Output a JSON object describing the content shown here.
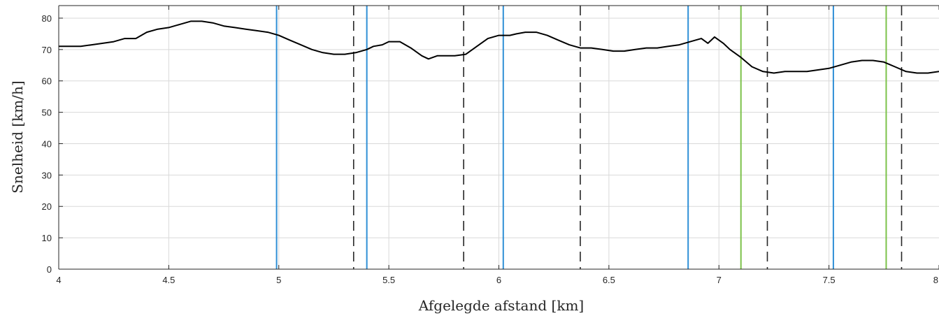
{
  "chart_data": {
    "type": "line",
    "xlabel": "Afgelegde afstand [km]",
    "ylabel": "Snelheid [km/h]",
    "xlim": [
      4,
      8
    ],
    "ylim": [
      0,
      84
    ],
    "xticks": [
      4,
      4.5,
      5,
      5.5,
      6,
      6.5,
      7,
      7.5,
      8
    ],
    "xtick_labels": [
      "4",
      "4.5",
      "5",
      "5.5",
      "6",
      "6.5",
      "7",
      "7.5",
      "8"
    ],
    "yticks": [
      0,
      10,
      20,
      30,
      40,
      50,
      60,
      70,
      80
    ],
    "ytick_labels": [
      "0",
      "10",
      "20",
      "30",
      "40",
      "50",
      "60",
      "70",
      "80"
    ],
    "grid": true,
    "series": [
      {
        "color": "#000000",
        "x": [
          4.0,
          4.05,
          4.1,
          4.15,
          4.2,
          4.25,
          4.3,
          4.35,
          4.4,
          4.45,
          4.5,
          4.55,
          4.6,
          4.65,
          4.7,
          4.75,
          4.8,
          4.85,
          4.9,
          4.95,
          5.0,
          5.05,
          5.1,
          5.15,
          5.2,
          5.25,
          5.3,
          5.35,
          5.4,
          5.43,
          5.47,
          5.5,
          5.55,
          5.6,
          5.65,
          5.68,
          5.72,
          5.75,
          5.8,
          5.85,
          5.9,
          5.95,
          6.0,
          6.05,
          6.08,
          6.12,
          6.17,
          6.22,
          6.27,
          6.32,
          6.37,
          6.42,
          6.47,
          6.52,
          6.57,
          6.62,
          6.67,
          6.72,
          6.77,
          6.82,
          6.87,
          6.92,
          6.95,
          6.98,
          7.02,
          7.05,
          7.1,
          7.15,
          7.2,
          7.25,
          7.3,
          7.35,
          7.4,
          7.45,
          7.5,
          7.55,
          7.6,
          7.65,
          7.7,
          7.75,
          7.8,
          7.85,
          7.9,
          7.95,
          8.0
        ],
        "y": [
          71,
          71,
          71,
          71.5,
          72,
          72.5,
          73.5,
          73.5,
          75.5,
          76.5,
          77,
          78,
          79,
          79,
          78.5,
          77.5,
          77,
          76.5,
          76,
          75.5,
          74.5,
          73,
          71.5,
          70,
          69,
          68.5,
          68.5,
          69,
          70,
          71,
          71.5,
          72.5,
          72.5,
          70.5,
          68,
          67,
          68,
          68,
          68,
          68.5,
          71,
          73.5,
          74.5,
          74.5,
          75,
          75.5,
          75.5,
          74.5,
          73,
          71.5,
          70.5,
          70.5,
          70,
          69.5,
          69.5,
          70,
          70.5,
          70.5,
          71,
          71.5,
          72.5,
          73.5,
          72,
          74,
          72,
          70,
          67.5,
          64.5,
          63,
          62.5,
          63,
          63,
          63,
          63.5,
          64,
          65,
          66,
          66.5,
          66.5,
          66,
          64.5,
          63,
          62.5,
          62.5,
          63
        ]
      }
    ],
    "vlines": [
      {
        "x": 4.99,
        "color": "#2f8fd6",
        "style": "solid"
      },
      {
        "x": 5.4,
        "color": "#2f8fd6",
        "style": "solid"
      },
      {
        "x": 6.02,
        "color": "#2f8fd6",
        "style": "solid"
      },
      {
        "x": 6.86,
        "color": "#2f8fd6",
        "style": "solid"
      },
      {
        "x": 7.52,
        "color": "#2f8fd6",
        "style": "solid"
      },
      {
        "x": 7.1,
        "color": "#7cc24a",
        "style": "solid"
      },
      {
        "x": 7.76,
        "color": "#7cc24a",
        "style": "solid"
      },
      {
        "x": 5.34,
        "color": "#262626",
        "style": "dashed"
      },
      {
        "x": 5.84,
        "color": "#262626",
        "style": "dashed"
      },
      {
        "x": 6.37,
        "color": "#262626",
        "style": "dashed"
      },
      {
        "x": 7.22,
        "color": "#262626",
        "style": "dashed"
      },
      {
        "x": 7.83,
        "color": "#262626",
        "style": "dashed"
      }
    ]
  }
}
